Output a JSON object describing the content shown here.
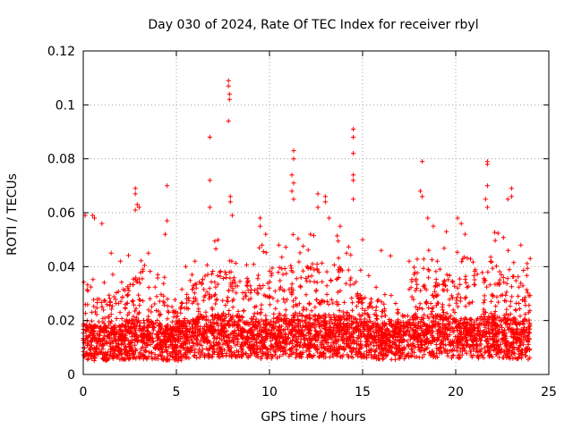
{
  "chart_data": {
    "type": "scatter",
    "title": "Day 030 of 2024, Rate Of TEC Index for receiver rbyl",
    "xlabel": "GPS time / hours",
    "ylabel": "ROTI / TECUs",
    "xlim": [
      0,
      25
    ],
    "ylim": [
      0,
      0.12
    ],
    "x_ticks": [
      0,
      5,
      10,
      15,
      20,
      25
    ],
    "x_tick_labels": [
      "0",
      "5",
      "10",
      "15",
      "20",
      "25"
    ],
    "y_ticks": [
      0,
      0.02,
      0.04,
      0.06,
      0.08,
      0.1,
      0.12
    ],
    "y_tick_labels": [
      "0",
      "0.02",
      "0.04",
      "0.06",
      "0.08",
      "0.1",
      "0.12"
    ],
    "grid": true,
    "marker": "+",
    "color": "#ff0000",
    "series": [
      {
        "name": "ROTI",
        "baseline_profile": {
          "x": [
            0,
            1,
            2,
            3,
            4,
            5,
            6,
            7,
            8,
            9,
            10,
            11,
            12,
            13,
            14,
            15,
            16,
            17,
            18,
            19,
            20,
            21,
            22,
            23,
            24
          ],
          "median": [
            0.012,
            0.011,
            0.012,
            0.013,
            0.012,
            0.011,
            0.013,
            0.014,
            0.014,
            0.013,
            0.013,
            0.014,
            0.014,
            0.014,
            0.014,
            0.013,
            0.012,
            0.012,
            0.014,
            0.014,
            0.013,
            0.013,
            0.014,
            0.013,
            0.012
          ],
          "upper_envelope": [
            0.045,
            0.035,
            0.04,
            0.05,
            0.04,
            0.03,
            0.045,
            0.05,
            0.055,
            0.045,
            0.05,
            0.055,
            0.05,
            0.055,
            0.05,
            0.04,
            0.03,
            0.03,
            0.055,
            0.045,
            0.05,
            0.05,
            0.055,
            0.05,
            0.04
          ]
        },
        "points": [
          [
            7.8,
            0.109
          ],
          [
            7.8,
            0.107
          ],
          [
            7.85,
            0.104
          ],
          [
            7.85,
            0.102
          ],
          [
            7.8,
            0.094
          ],
          [
            6.8,
            0.088
          ],
          [
            6.8,
            0.072
          ],
          [
            6.8,
            0.062
          ],
          [
            14.5,
            0.091
          ],
          [
            14.5,
            0.088
          ],
          [
            14.5,
            0.082
          ],
          [
            14.5,
            0.074
          ],
          [
            14.5,
            0.072
          ],
          [
            14.5,
            0.065
          ],
          [
            11.3,
            0.083
          ],
          [
            11.3,
            0.08
          ],
          [
            11.2,
            0.074
          ],
          [
            11.3,
            0.071
          ],
          [
            11.2,
            0.068
          ],
          [
            11.3,
            0.065
          ],
          [
            18.2,
            0.079
          ],
          [
            18.1,
            0.068
          ],
          [
            18.2,
            0.066
          ],
          [
            21.7,
            0.079
          ],
          [
            21.7,
            0.078
          ],
          [
            21.7,
            0.07
          ],
          [
            21.6,
            0.065
          ],
          [
            21.7,
            0.062
          ],
          [
            2.8,
            0.069
          ],
          [
            2.8,
            0.067
          ],
          [
            2.9,
            0.063
          ],
          [
            2.8,
            0.061
          ],
          [
            3.0,
            0.062
          ],
          [
            4.5,
            0.07
          ],
          [
            4.5,
            0.057
          ],
          [
            4.4,
            0.052
          ],
          [
            7.9,
            0.066
          ],
          [
            7.9,
            0.064
          ],
          [
            8.0,
            0.059
          ],
          [
            12.6,
            0.067
          ],
          [
            12.6,
            0.062
          ],
          [
            13.0,
            0.066
          ],
          [
            13.0,
            0.064
          ],
          [
            13.2,
            0.058
          ],
          [
            23.0,
            0.069
          ],
          [
            23.0,
            0.066
          ],
          [
            22.8,
            0.065
          ],
          [
            0.1,
            0.059
          ],
          [
            0.5,
            0.059
          ],
          [
            0.6,
            0.058
          ],
          [
            1.0,
            0.056
          ],
          [
            9.5,
            0.058
          ],
          [
            9.5,
            0.055
          ],
          [
            9.8,
            0.052
          ],
          [
            18.5,
            0.058
          ],
          [
            18.8,
            0.055
          ],
          [
            19.5,
            0.053
          ],
          [
            20.1,
            0.058
          ],
          [
            20.3,
            0.056
          ],
          [
            20.5,
            0.052
          ],
          [
            15.0,
            0.05
          ],
          [
            16.0,
            0.046
          ],
          [
            17.5,
            0.042
          ],
          [
            16.5,
            0.044
          ],
          [
            5.5,
            0.04
          ],
          [
            6.0,
            0.042
          ],
          [
            1.5,
            0.045
          ],
          [
            2.0,
            0.042
          ],
          [
            3.5,
            0.045
          ],
          [
            23.5,
            0.048
          ],
          [
            24.0,
            0.043
          ],
          [
            10.5,
            0.048
          ],
          [
            13.8,
            0.055
          ],
          [
            12.2,
            0.052
          ]
        ]
      }
    ]
  }
}
